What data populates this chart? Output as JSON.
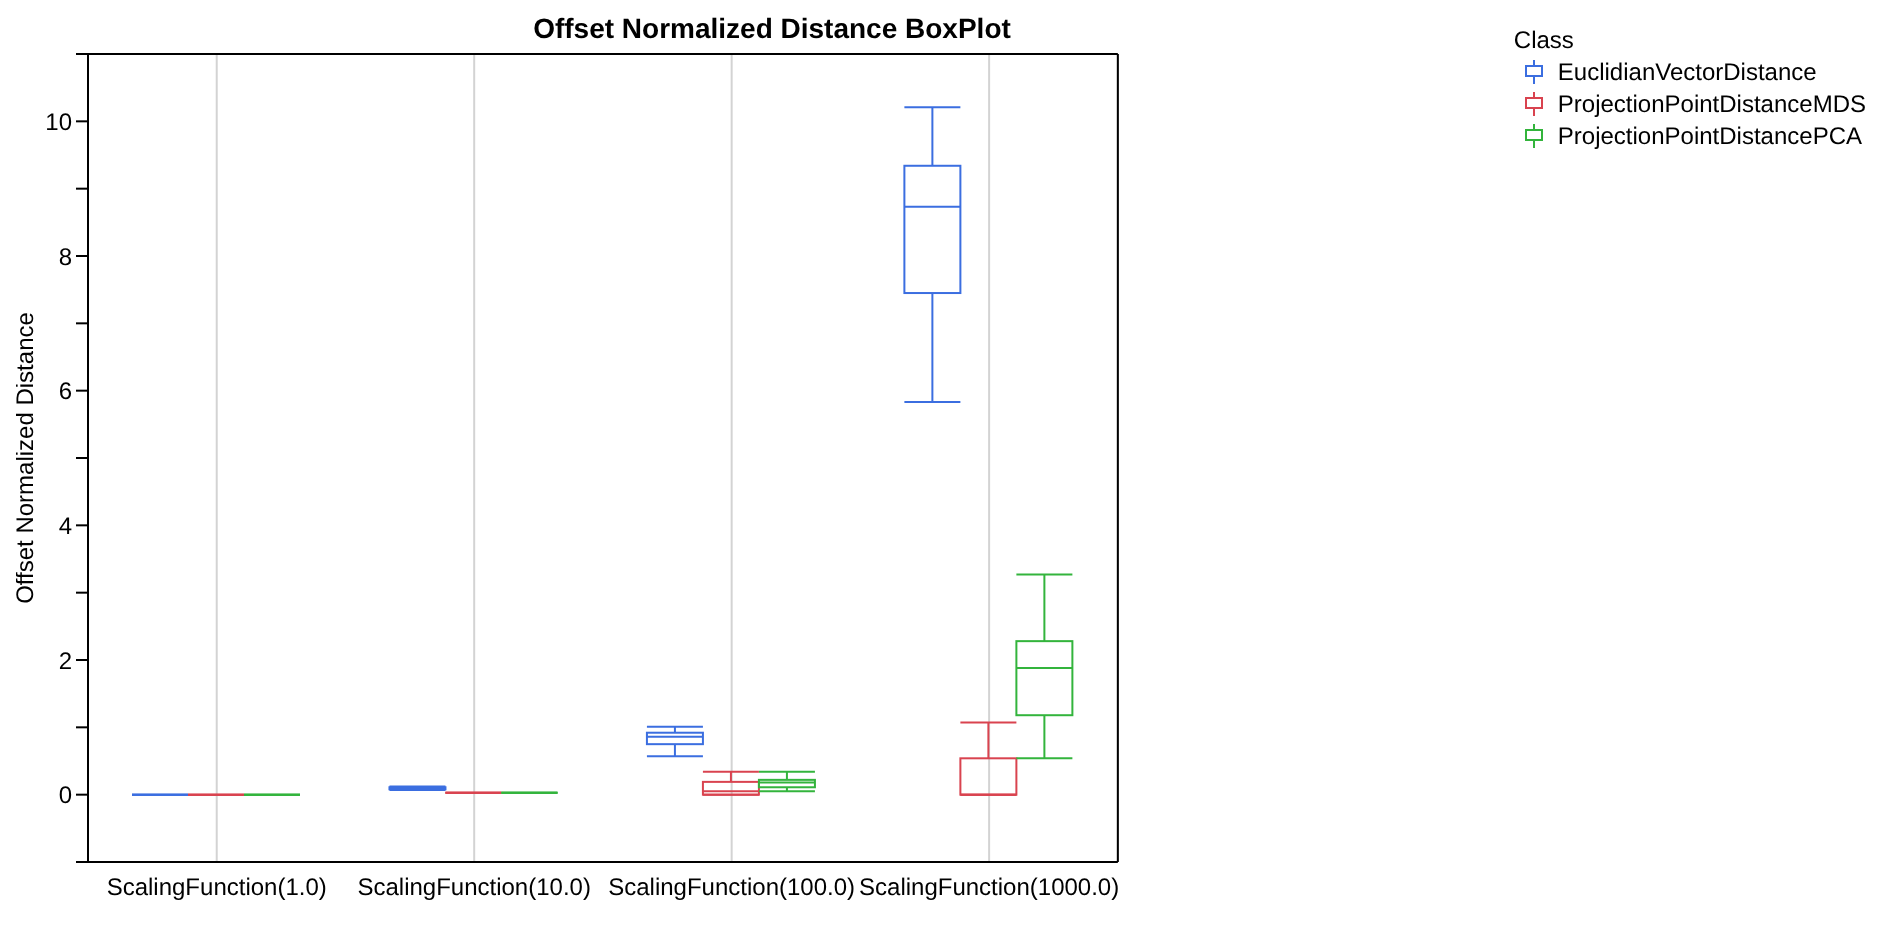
{
  "chart_data": {
    "type": "box",
    "title": "Offset Normalized Distance BoxPlot",
    "ylabel": "Offset Normalized Distance",
    "legend_title": "Class",
    "categories": [
      "ScalingFunction(1.0)",
      "ScalingFunction(10.0)",
      "ScalingFunction(100.0)",
      "ScalingFunction(1000.0)"
    ],
    "series": [
      {
        "name": "EuclidianVectorDistance",
        "color": "#3b6ee0",
        "boxes": [
          {
            "low": 0,
            "q1": 0,
            "median": 0,
            "q3": 0,
            "high": 0
          },
          {
            "low": 0.07,
            "q1": 0.08,
            "median": 0.1,
            "q3": 0.11,
            "high": 0.12
          },
          {
            "low": 0.57,
            "q1": 0.75,
            "median": 0.86,
            "q3": 0.92,
            "high": 1.01
          },
          {
            "low": 5.83,
            "q1": 7.45,
            "median": 8.73,
            "q3": 9.34,
            "high": 10.21
          }
        ]
      },
      {
        "name": "ProjectionPointDistanceMDS",
        "color": "#d9434f",
        "boxes": [
          {
            "low": 0,
            "q1": 0,
            "median": 0,
            "q3": 0,
            "high": 0
          },
          {
            "low": 0.03,
            "q1": 0.03,
            "median": 0.03,
            "q3": 0.03,
            "high": 0.03
          },
          {
            "low": 0,
            "q1": 0,
            "median": 0.05,
            "q3": 0.19,
            "high": 0.34
          },
          {
            "low": 0,
            "q1": 0,
            "median": 0,
            "q3": 0.54,
            "high": 1.07
          }
        ]
      },
      {
        "name": "ProjectionPointDistancePCA",
        "color": "#33b43c",
        "boxes": [
          {
            "low": 0,
            "q1": 0,
            "median": 0,
            "q3": 0,
            "high": 0
          },
          {
            "low": 0.03,
            "q1": 0.03,
            "median": 0.03,
            "q3": 0.03,
            "high": 0.03
          },
          {
            "low": 0.05,
            "q1": 0.11,
            "median": 0.18,
            "q3": 0.22,
            "high": 0.34
          },
          {
            "low": 0.54,
            "q1": 1.18,
            "median": 1.88,
            "q3": 2.28,
            "high": 3.27
          }
        ]
      }
    ],
    "ylim": [
      -1,
      11
    ],
    "yticks": [
      {
        "value": -1,
        "label": null
      },
      0,
      {
        "value": 1,
        "label": null
      },
      2,
      {
        "value": 3,
        "label": null
      },
      4,
      {
        "value": 5,
        "label": null
      },
      6,
      {
        "value": 7,
        "label": null
      },
      8,
      {
        "value": 9,
        "label": null
      },
      10,
      {
        "value": 11,
        "label": null
      }
    ],
    "grid": "x",
    "legend": "top right"
  }
}
